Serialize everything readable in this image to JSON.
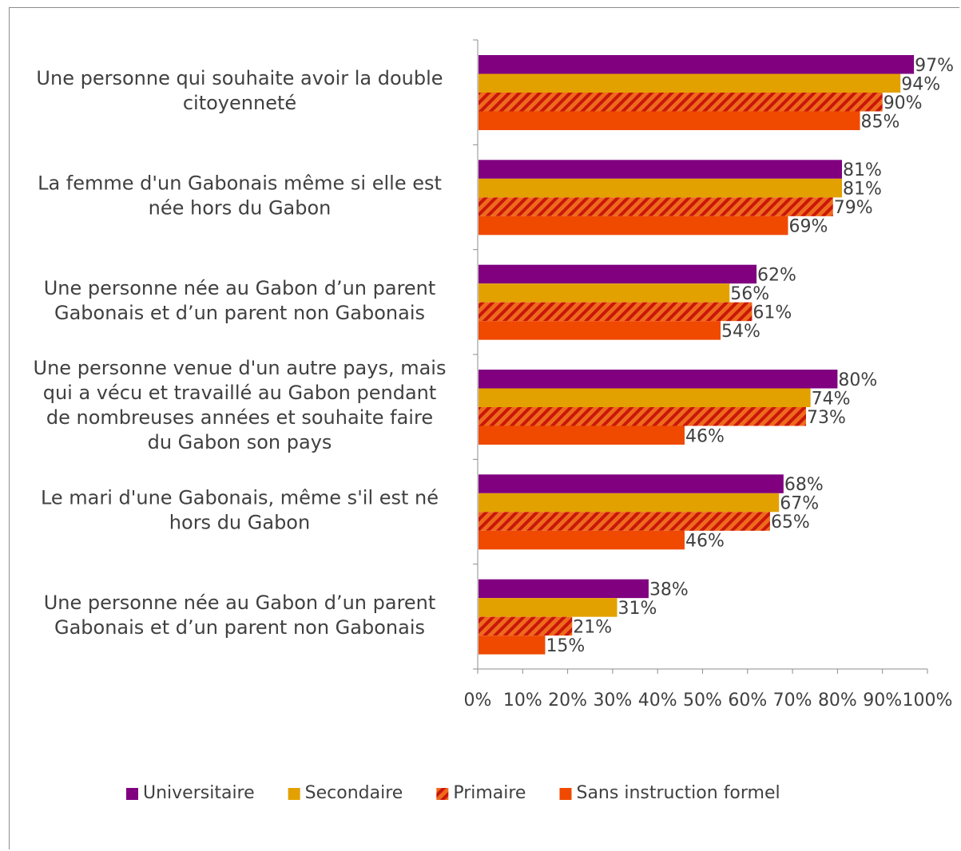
{
  "chart_data": {
    "type": "bar",
    "orientation": "horizontal",
    "categories": [
      [
        "Une personne qui souhaite avoir la double",
        "citoyenneté"
      ],
      [
        "La femme d'un Gabonais même si elle est",
        "née hors du Gabon"
      ],
      [
        "Une personne née au Gabon d’un parent",
        "Gabonais et d’un parent non  Gabonais"
      ],
      [
        "Une personne venue d'un autre pays, mais",
        "qui a vécu et travaillé au Gabon pendant",
        "de nombreuses années et souhaite faire",
        "du Gabon son pays"
      ],
      [
        "Le mari d'une Gabonais, même s'il est né",
        "hors du Gabon"
      ],
      [
        "Une personne née au Gabon d’un parent",
        "Gabonais et d’un parent non  Gabonais"
      ]
    ],
    "series": [
      {
        "name": "Universitaire",
        "color": "#800080",
        "pattern": "solid",
        "values": [
          97,
          81,
          62,
          80,
          68,
          38
        ]
      },
      {
        "name": "Secondaire",
        "color": "#e3a100",
        "pattern": "solid",
        "values": [
          94,
          81,
          56,
          74,
          67,
          31
        ]
      },
      {
        "name": "Primaire",
        "color": "#d8200a",
        "pattern": "hatched",
        "values": [
          90,
          79,
          61,
          73,
          65,
          21
        ]
      },
      {
        "name": "Sans instruction formel",
        "color": "#ef4a00",
        "pattern": "solid",
        "values": [
          85,
          69,
          54,
          46,
          46,
          15
        ]
      }
    ],
    "xlim": [
      0,
      100
    ],
    "xticks": [
      "0%",
      "10%",
      "20%",
      "30%",
      "40%",
      "50%",
      "60%",
      "70%",
      "80%",
      "90%",
      "100%"
    ],
    "value_suffix": "%",
    "legend_position": "bottom",
    "grid": false
  }
}
